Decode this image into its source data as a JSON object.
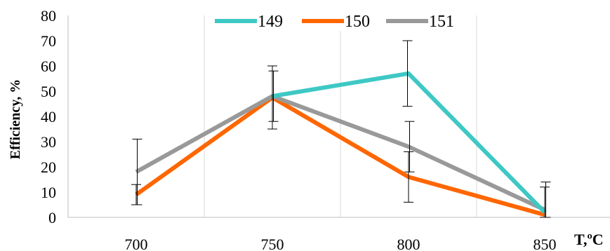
{
  "chart_data": {
    "type": "line",
    "categories": [
      "700",
      "750",
      "800",
      "850"
    ],
    "x": [
      700,
      750,
      800,
      850
    ],
    "xlabel": "T,ºC",
    "ylabel": "Efficiency, %",
    "ylim": [
      0,
      80
    ],
    "yticks": [
      "0",
      "10",
      "20",
      "30",
      "40",
      "50",
      "60",
      "70",
      "80"
    ],
    "grid": "vertical",
    "legend": "top",
    "series": [
      {
        "name": "149",
        "color": "#3ec8c4",
        "values": [
          null,
          48,
          57,
          2
        ],
        "errors": [
          null,
          null,
          13,
          null
        ]
      },
      {
        "name": "150",
        "color": "#ff6600",
        "values": [
          9,
          47.5,
          16,
          1
        ],
        "errors": [
          4,
          12.5,
          10,
          11
        ]
      },
      {
        "name": "151",
        "color": "#999999",
        "values": [
          18,
          48,
          28,
          3
        ],
        "errors": [
          13,
          10,
          10,
          11
        ]
      }
    ]
  }
}
